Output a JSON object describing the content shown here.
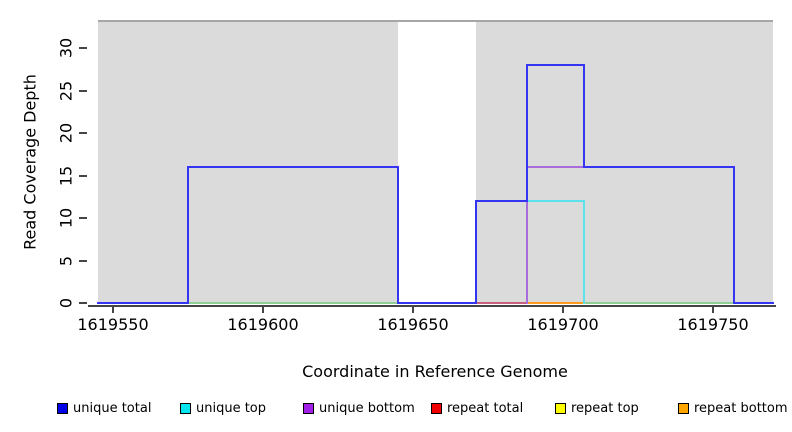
{
  "chart_data": {
    "type": "line",
    "subtype": "step-coverage-plot",
    "title": "",
    "xlabel": "Coordinate in Reference Genome",
    "ylabel": "Read Coverage Depth",
    "xlim": [
      1619545,
      1619770
    ],
    "ylim": [
      0,
      33.2
    ],
    "x_ticks": [
      1619550,
      1619600,
      1619650,
      1619700,
      1619750
    ],
    "y_ticks": [
      0,
      5,
      10,
      15,
      20,
      25,
      30
    ],
    "grid": false,
    "plot_background": "#DBDBDB",
    "gap_region": {
      "x0": 1619645,
      "x1": 1619671,
      "color": "#FFFFFF"
    },
    "series": [
      {
        "name": "unique total",
        "color": "#0000E8",
        "points": [
          [
            1619545,
            0
          ],
          [
            1619575,
            0
          ],
          [
            1619575,
            16
          ],
          [
            1619645,
            16
          ],
          [
            1619645,
            0
          ],
          [
            1619671,
            0
          ],
          [
            1619671,
            12
          ],
          [
            1619688,
            12
          ],
          [
            1619688,
            28
          ],
          [
            1619707,
            28
          ],
          [
            1619707,
            16
          ],
          [
            1619757,
            16
          ],
          [
            1619757,
            0
          ],
          [
            1619770,
            0
          ]
        ]
      },
      {
        "name": "unique top",
        "color": "#00E5EE",
        "points": [
          [
            1619545,
            0
          ],
          [
            1619671,
            0
          ],
          [
            1619671,
            12
          ],
          [
            1619707,
            12
          ],
          [
            1619707,
            0
          ],
          [
            1619770,
            0
          ]
        ]
      },
      {
        "name": "unique bottom",
        "color": "#A020E8",
        "points": [
          [
            1619545,
            0
          ],
          [
            1619575,
            0
          ],
          [
            1619575,
            16
          ],
          [
            1619645,
            16
          ],
          [
            1619645,
            0
          ],
          [
            1619688,
            0
          ],
          [
            1619688,
            16
          ],
          [
            1619757,
            16
          ],
          [
            1619757,
            0
          ],
          [
            1619770,
            0
          ]
        ]
      },
      {
        "name": "repeat total",
        "color": "#F00000",
        "points": [
          [
            1619545,
            0
          ],
          [
            1619770,
            0
          ]
        ]
      },
      {
        "name": "repeat top",
        "color": "#FFFF00",
        "points": [
          [
            1619545,
            0
          ],
          [
            1619770,
            0
          ]
        ]
      },
      {
        "name": "repeat bottom",
        "color": "#FFA500",
        "points": [
          [
            1619545,
            0
          ],
          [
            1619770,
            0
          ]
        ]
      }
    ],
    "draw_paths": [
      {
        "name": "baseline-overlap-left",
        "color": "#8FD195",
        "path": [
          [
            1619575,
            0
          ],
          [
            1619645,
            0
          ]
        ]
      },
      {
        "name": "baseline-overlap-right",
        "color": "#8FD195",
        "path": [
          [
            1619707,
            0
          ],
          [
            1619757,
            0
          ]
        ]
      },
      {
        "name": "repeat-total-baseline",
        "color": "#C75F7E",
        "path": [
          [
            1619671,
            0
          ],
          [
            1619688,
            0
          ]
        ]
      },
      {
        "name": "repeat-bottom-baseline",
        "color": "#FF9A1E",
        "path": [
          [
            1619688,
            0
          ],
          [
            1619707,
            0
          ]
        ]
      },
      {
        "name": "unique-top-line",
        "color": "#5CE2EA",
        "path": [
          [
            1619671,
            12
          ],
          [
            1619707,
            12
          ],
          [
            1619707,
            0
          ]
        ]
      },
      {
        "name": "unique-bottom-line",
        "color": "#A86CDB",
        "path": [
          [
            1619688,
            0
          ],
          [
            1619688,
            16
          ],
          [
            1619757,
            16
          ],
          [
            1619757,
            0
          ]
        ]
      },
      {
        "name": "unique-total-line",
        "color": "#3434F2",
        "path": [
          [
            1619545,
            0
          ],
          [
            1619575,
            0
          ],
          [
            1619575,
            16
          ],
          [
            1619645,
            16
          ],
          [
            1619645,
            0
          ],
          [
            1619671,
            0
          ],
          [
            1619671,
            12
          ],
          [
            1619688,
            12
          ],
          [
            1619688,
            28
          ],
          [
            1619707,
            28
          ],
          [
            1619707,
            16
          ],
          [
            1619757,
            16
          ],
          [
            1619757,
            0
          ],
          [
            1619770,
            0
          ]
        ]
      }
    ],
    "legend_position": "bottom"
  },
  "legend": {
    "items": [
      {
        "label": "unique total",
        "color": "#0000E8"
      },
      {
        "label": "unique top",
        "color": "#00E5EE"
      },
      {
        "label": "unique bottom",
        "color": "#A020E8"
      },
      {
        "label": "repeat total",
        "color": "#F00000"
      },
      {
        "label": "repeat top",
        "color": "#FFFF00"
      },
      {
        "label": "repeat bottom",
        "color": "#FFA500"
      }
    ]
  }
}
